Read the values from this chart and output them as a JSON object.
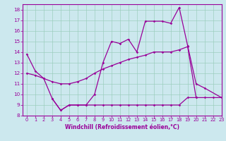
{
  "xlabel": "Windchill (Refroidissement éolien,°C)",
  "bg_color": "#cce8ee",
  "grid_color": "#99ccbb",
  "line_color": "#990099",
  "x_min": -0.5,
  "x_max": 23,
  "y_min": 8,
  "y_max": 18.5,
  "yticks": [
    8,
    9,
    10,
    11,
    12,
    13,
    14,
    15,
    16,
    17,
    18
  ],
  "xticks": [
    0,
    1,
    2,
    3,
    4,
    5,
    6,
    7,
    8,
    9,
    10,
    11,
    12,
    13,
    14,
    15,
    16,
    17,
    18,
    19,
    20,
    21,
    22,
    23
  ],
  "line1_x": [
    0,
    1,
    2,
    3,
    4,
    5,
    6,
    7,
    8,
    9,
    10,
    11,
    12,
    13,
    14,
    15,
    16,
    17,
    18,
    19,
    20,
    21,
    23
  ],
  "line1_y": [
    13.8,
    12.2,
    11.5,
    9.6,
    8.5,
    9.0,
    9.0,
    9.0,
    10.0,
    13.0,
    15.0,
    14.8,
    15.2,
    14.0,
    16.9,
    16.9,
    16.9,
    16.7,
    18.2,
    14.6,
    11.0,
    10.6,
    9.7
  ],
  "line2_x": [
    0,
    1,
    2,
    3,
    4,
    5,
    6,
    7,
    8,
    9,
    10,
    11,
    12,
    13,
    14,
    15,
    16,
    17,
    18,
    19,
    20
  ],
  "line2_y": [
    12.0,
    11.8,
    11.5,
    11.2,
    11.0,
    11.0,
    11.2,
    11.5,
    12.0,
    12.4,
    12.7,
    13.0,
    13.3,
    13.5,
    13.7,
    14.0,
    14.0,
    14.0,
    14.2,
    14.5,
    9.7
  ],
  "line3_x": [
    3,
    4,
    5,
    6,
    7,
    8,
    9,
    10,
    11,
    12,
    13,
    14,
    15,
    16,
    17,
    18,
    19,
    20,
    21,
    22,
    23
  ],
  "line3_y": [
    9.6,
    8.5,
    9.0,
    9.0,
    9.0,
    9.0,
    9.0,
    9.0,
    9.0,
    9.0,
    9.0,
    9.0,
    9.0,
    9.0,
    9.0,
    9.0,
    9.7,
    9.7,
    9.7,
    9.7,
    9.7
  ]
}
